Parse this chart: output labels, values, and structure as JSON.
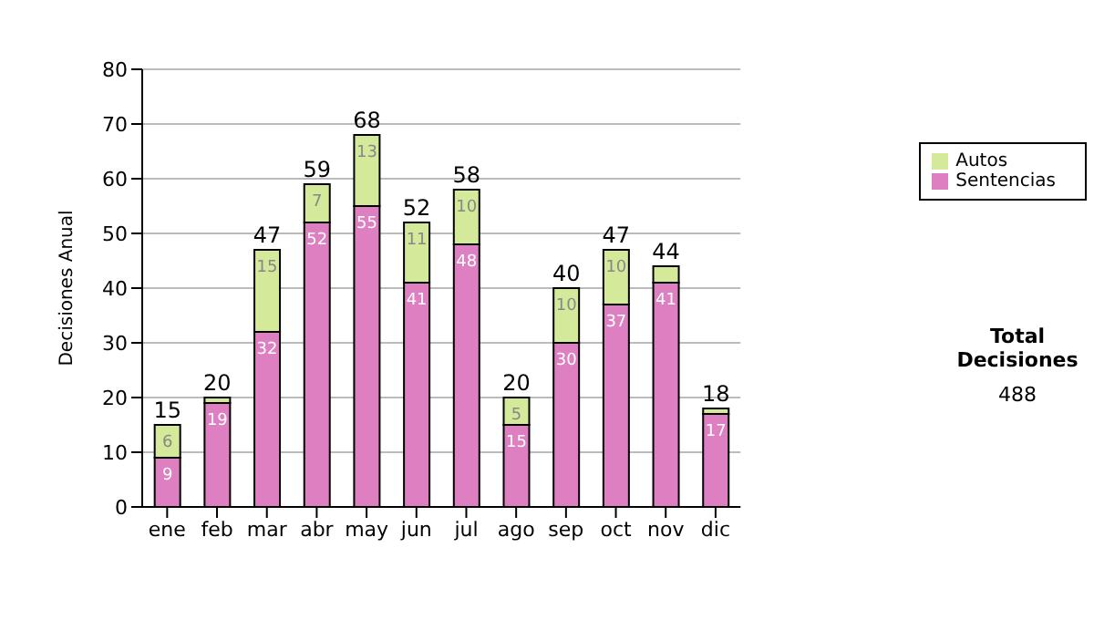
{
  "chart_data": {
    "type": "bar",
    "ylabel": "Decisiones Anual",
    "categories": [
      "ene",
      "feb",
      "mar",
      "abr",
      "may",
      "jun",
      "jul",
      "ago",
      "sep",
      "oct",
      "nov",
      "dic"
    ],
    "series": [
      {
        "name": "Sentencias",
        "color": "#dd7fc0",
        "values": [
          9,
          19,
          32,
          52,
          55,
          41,
          48,
          15,
          30,
          37,
          41,
          17
        ],
        "value_labels": [
          "9",
          "19",
          "32",
          "52",
          "55",
          "41",
          "48",
          "15",
          "30",
          "37",
          "41",
          "17"
        ]
      },
      {
        "name": "Autos",
        "color": "#d4e99a",
        "values": [
          6,
          1,
          15,
          7,
          13,
          11,
          10,
          5,
          10,
          10,
          3,
          1
        ],
        "value_labels": [
          "6",
          null,
          "15",
          "7",
          "13",
          "11",
          "10",
          "5",
          "10",
          "10",
          null,
          null
        ]
      }
    ],
    "stacked": true,
    "totals": [
      "15",
      "20",
      "47",
      "59",
      "68",
      "52",
      "58",
      "20",
      "40",
      "47",
      "44",
      "18"
    ],
    "ylim": [
      0,
      80
    ],
    "yticks": [
      0,
      10,
      20,
      30,
      40,
      50,
      60,
      70,
      80
    ],
    "grid": "y",
    "legend": "right",
    "annotations": [
      "Total Decisiones",
      "488"
    ]
  }
}
